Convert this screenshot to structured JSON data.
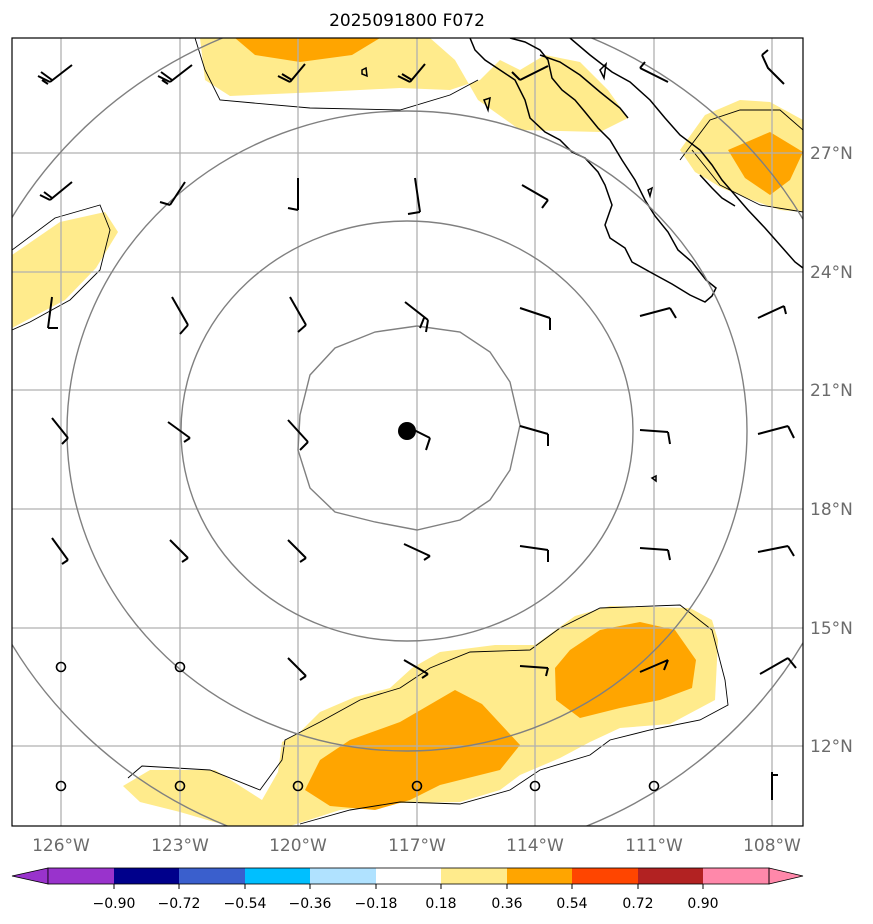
{
  "title": "2025091800 F072",
  "map": {
    "lon_range": [
      -127,
      -107.5
    ],
    "lat_range": [
      10.5,
      30.5
    ],
    "x_ticks": [
      "126°W",
      "123°W",
      "120°W",
      "117°W",
      "114°W",
      "111°W",
      "108°W"
    ],
    "y_ticks": [
      "27°N",
      "24°N",
      "21°N",
      "18°N",
      "15°N",
      "12°N"
    ],
    "grid": true,
    "storm_center": {
      "lon": -116.8,
      "lat": 19.9
    },
    "range_rings": 4,
    "fill_colors": {
      "light_positive": "#ffeb8c",
      "positive": "#ffa500"
    }
  },
  "colorbar": {
    "tick_labels": [
      "−0.90",
      "−0.72",
      "−0.54",
      "−0.36",
      "−0.18",
      "0.18",
      "0.36",
      "0.54",
      "0.72",
      "0.90"
    ],
    "colors": [
      "#9933cc",
      "#00008b",
      "#3a5fcd",
      "#00bfff",
      "#b0e2ff",
      "#ffffff",
      "#ffeb8c",
      "#ffa500",
      "#ff4500",
      "#b22222",
      "#ff88aa"
    ]
  }
}
